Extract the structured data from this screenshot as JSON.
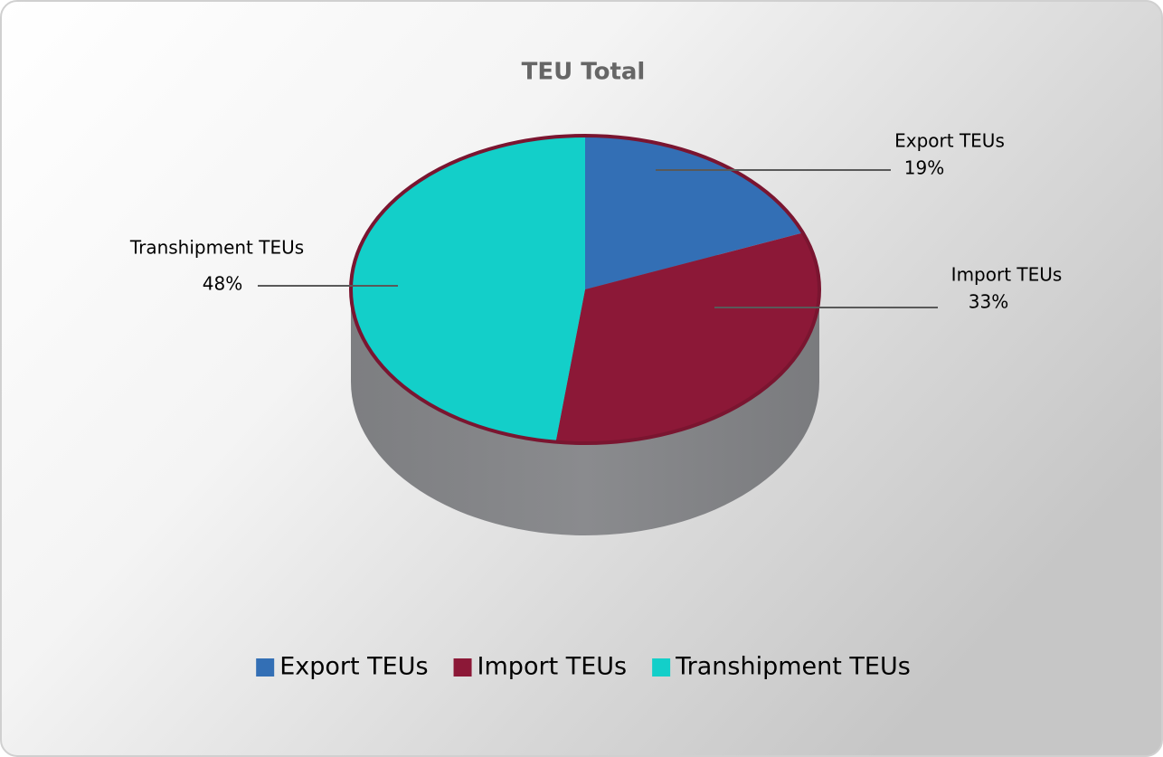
{
  "chart_data": {
    "type": "pie",
    "title": "TEU Total",
    "categories": [
      "Export TEUs",
      "Import TEUs",
      "Transhipment TEUs"
    ],
    "values": [
      19,
      33,
      48
    ],
    "value_labels": [
      "19%",
      "33%",
      "48%"
    ],
    "colors": [
      "#336fb5",
      "#8c1837",
      "#13cfc9"
    ],
    "legend": "bottom"
  }
}
